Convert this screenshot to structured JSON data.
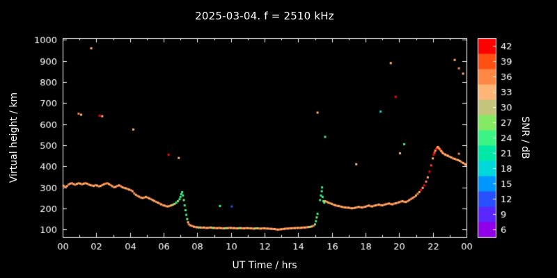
{
  "chart_data": {
    "type": "scatter",
    "title": "2025-03-04. f = 2510 kHz",
    "xlabel": "UT Time / hrs",
    "ylabel": "Virtual height / km",
    "xlim": [
      0,
      24
    ],
    "ylim": [
      65,
      1008
    ],
    "x_ticks": {
      "values": [
        0,
        2,
        4,
        6,
        8,
        10,
        12,
        14,
        16,
        18,
        20,
        22,
        24
      ],
      "labels": [
        "00",
        "02",
        "04",
        "06",
        "08",
        "10",
        "12",
        "14",
        "16",
        "18",
        "20",
        "22",
        "00"
      ]
    },
    "y_ticks": [
      100,
      200,
      300,
      400,
      500,
      600,
      700,
      800,
      900,
      1000
    ],
    "colorbar": {
      "label": "SNR / dB",
      "ticks": [
        6,
        9,
        12,
        15,
        18,
        21,
        24,
        27,
        30,
        33,
        36,
        39,
        42
      ],
      "colors": [
        "#9000e8",
        "#5a28ff",
        "#2850ff",
        "#0096ff",
        "#00d8dc",
        "#00e8a8",
        "#3cf484",
        "#84ea64",
        "#c4c47c",
        "#ffb478",
        "#ff8844",
        "#ff5014",
        "#ff0000"
      ]
    },
    "points": [
      [
        0.05,
        308,
        34
      ],
      [
        0.15,
        302,
        35
      ],
      [
        0.25,
        306,
        34
      ],
      [
        0.35,
        314,
        35
      ],
      [
        0.45,
        318,
        34
      ],
      [
        0.55,
        320,
        35
      ],
      [
        0.65,
        316,
        34
      ],
      [
        0.75,
        313,
        35
      ],
      [
        0.85,
        317,
        34
      ],
      [
        0.95,
        320,
        35
      ],
      [
        1.05,
        318,
        34
      ],
      [
        1.15,
        315,
        35
      ],
      [
        1.25,
        318,
        34
      ],
      [
        1.35,
        320,
        36
      ],
      [
        1.45,
        318,
        34
      ],
      [
        1.55,
        314,
        35
      ],
      [
        1.65,
        311,
        34
      ],
      [
        1.75,
        309,
        35
      ],
      [
        1.85,
        307,
        34
      ],
      [
        1.95,
        311,
        35
      ],
      [
        2.05,
        309,
        34
      ],
      [
        2.15,
        305,
        35
      ],
      [
        2.25,
        307,
        34
      ],
      [
        2.35,
        311,
        35
      ],
      [
        2.45,
        315,
        34
      ],
      [
        2.55,
        318,
        36
      ],
      [
        2.65,
        320,
        35
      ],
      [
        2.75,
        316,
        34
      ],
      [
        2.85,
        311,
        35
      ],
      [
        2.95,
        306,
        34
      ],
      [
        3.05,
        301,
        35
      ],
      [
        3.15,
        303,
        34
      ],
      [
        3.25,
        307,
        35
      ],
      [
        3.35,
        310,
        34
      ],
      [
        3.45,
        306,
        35
      ],
      [
        3.55,
        301,
        34
      ],
      [
        3.65,
        298,
        35
      ],
      [
        3.75,
        296,
        34
      ],
      [
        3.85,
        293,
        35
      ],
      [
        3.95,
        290,
        34
      ],
      [
        4.05,
        287,
        35
      ],
      [
        4.15,
        282,
        34
      ],
      [
        4.25,
        272,
        35
      ],
      [
        4.35,
        265,
        34
      ],
      [
        4.45,
        260,
        35
      ],
      [
        4.55,
        256,
        34
      ],
      [
        4.65,
        252,
        35
      ],
      [
        4.75,
        250,
        34
      ],
      [
        4.85,
        252,
        35
      ],
      [
        4.95,
        255,
        34
      ],
      [
        5.05,
        252,
        35
      ],
      [
        5.15,
        248,
        34
      ],
      [
        5.25,
        244,
        35
      ],
      [
        5.35,
        240,
        33
      ],
      [
        5.45,
        236,
        34
      ],
      [
        5.55,
        232,
        35
      ],
      [
        5.65,
        228,
        34
      ],
      [
        5.75,
        224,
        35
      ],
      [
        5.85,
        220,
        34
      ],
      [
        5.95,
        216,
        35
      ],
      [
        6.05,
        214,
        34
      ],
      [
        6.15,
        211,
        35
      ],
      [
        6.25,
        210,
        34
      ],
      [
        6.35,
        212,
        35
      ],
      [
        6.45,
        215,
        34
      ],
      [
        6.55,
        218,
        27
      ],
      [
        6.65,
        222,
        34
      ],
      [
        6.75,
        228,
        25
      ],
      [
        6.85,
        235,
        26
      ],
      [
        6.95,
        244,
        25
      ],
      [
        7.0,
        255,
        24
      ],
      [
        7.05,
        268,
        25
      ],
      [
        7.1,
        278,
        24
      ],
      [
        7.15,
        262,
        25
      ],
      [
        7.2,
        240,
        26
      ],
      [
        7.25,
        215,
        25
      ],
      [
        7.3,
        192,
        24
      ],
      [
        7.35,
        170,
        25
      ],
      [
        7.4,
        150,
        26
      ],
      [
        7.45,
        135,
        34
      ],
      [
        7.5,
        125,
        35
      ],
      [
        7.6,
        120,
        34
      ],
      [
        7.7,
        117,
        35
      ],
      [
        7.8,
        114,
        34
      ],
      [
        7.9,
        112,
        35
      ],
      [
        8.0,
        111,
        34
      ],
      [
        8.1,
        110,
        26
      ],
      [
        8.2,
        110,
        34
      ],
      [
        8.3,
        109,
        35
      ],
      [
        8.4,
        110,
        34
      ],
      [
        8.5,
        108,
        35
      ],
      [
        8.6,
        108,
        34
      ],
      [
        8.7,
        109,
        35
      ],
      [
        8.8,
        110,
        34
      ],
      [
        8.9,
        108,
        26
      ],
      [
        9.0,
        108,
        34
      ],
      [
        9.1,
        107,
        35
      ],
      [
        9.2,
        107,
        34
      ],
      [
        9.3,
        108,
        35
      ],
      [
        9.4,
        107,
        34
      ],
      [
        9.5,
        106,
        35
      ],
      [
        9.6,
        106,
        34
      ],
      [
        9.7,
        107,
        26
      ],
      [
        9.8,
        107,
        34
      ],
      [
        9.9,
        108,
        35
      ],
      [
        10.0,
        108,
        34
      ],
      [
        10.1,
        107,
        35
      ],
      [
        10.2,
        107,
        34
      ],
      [
        10.3,
        106,
        35
      ],
      [
        10.4,
        106,
        34
      ],
      [
        10.5,
        107,
        26
      ],
      [
        10.6,
        107,
        34
      ],
      [
        10.7,
        106,
        35
      ],
      [
        10.8,
        106,
        34
      ],
      [
        10.9,
        107,
        35
      ],
      [
        11.0,
        107,
        34
      ],
      [
        11.1,
        106,
        35
      ],
      [
        11.2,
        106,
        34
      ],
      [
        11.3,
        105,
        35
      ],
      [
        11.4,
        105,
        34
      ],
      [
        11.5,
        106,
        26
      ],
      [
        11.6,
        106,
        34
      ],
      [
        11.7,
        105,
        35
      ],
      [
        11.8,
        105,
        34
      ],
      [
        11.9,
        106,
        35
      ],
      [
        12.0,
        106,
        34
      ],
      [
        12.1,
        105,
        35
      ],
      [
        12.2,
        105,
        34
      ],
      [
        12.3,
        104,
        35
      ],
      [
        12.4,
        104,
        34
      ],
      [
        12.5,
        103,
        35
      ],
      [
        12.6,
        103,
        34
      ],
      [
        12.7,
        101,
        35
      ],
      [
        12.8,
        100,
        34
      ],
      [
        12.9,
        101,
        35
      ],
      [
        13.0,
        102,
        34
      ],
      [
        13.1,
        103,
        35
      ],
      [
        13.2,
        104,
        34
      ],
      [
        13.3,
        105,
        35
      ],
      [
        13.4,
        105,
        34
      ],
      [
        13.5,
        106,
        35
      ],
      [
        13.6,
        106,
        34
      ],
      [
        13.7,
        107,
        35
      ],
      [
        13.8,
        107,
        34
      ],
      [
        13.9,
        108,
        35
      ],
      [
        14.0,
        108,
        34
      ],
      [
        14.1,
        108,
        35
      ],
      [
        14.2,
        109,
        34
      ],
      [
        14.3,
        110,
        35
      ],
      [
        14.4,
        110,
        34
      ],
      [
        14.5,
        111,
        35
      ],
      [
        14.6,
        112,
        34
      ],
      [
        14.7,
        113,
        26
      ],
      [
        14.8,
        115,
        34
      ],
      [
        14.9,
        118,
        35
      ],
      [
        15.0,
        125,
        26
      ],
      [
        15.05,
        140,
        25
      ],
      [
        15.1,
        158,
        26
      ],
      [
        15.15,
        175,
        25
      ],
      [
        15.3,
        240,
        25
      ],
      [
        15.35,
        262,
        24
      ],
      [
        15.4,
        282,
        25
      ],
      [
        15.42,
        300,
        24
      ],
      [
        15.45,
        255,
        25
      ],
      [
        15.5,
        235,
        26
      ],
      [
        15.55,
        228,
        25
      ],
      [
        15.6,
        235,
        34
      ],
      [
        15.7,
        232,
        35
      ],
      [
        15.8,
        228,
        34
      ],
      [
        15.9,
        225,
        35
      ],
      [
        16.0,
        222,
        34
      ],
      [
        16.1,
        218,
        35
      ],
      [
        16.2,
        216,
        34
      ],
      [
        16.3,
        213,
        35
      ],
      [
        16.4,
        212,
        34
      ],
      [
        16.5,
        210,
        35
      ],
      [
        16.6,
        208,
        34
      ],
      [
        16.7,
        206,
        35
      ],
      [
        16.8,
        205,
        34
      ],
      [
        16.9,
        204,
        35
      ],
      [
        17.0,
        204,
        34
      ],
      [
        17.1,
        202,
        35
      ],
      [
        17.2,
        201,
        34
      ],
      [
        17.3,
        202,
        35
      ],
      [
        17.4,
        204,
        34
      ],
      [
        17.5,
        206,
        35
      ],
      [
        17.6,
        208,
        34
      ],
      [
        17.7,
        206,
        35
      ],
      [
        17.8,
        205,
        34
      ],
      [
        17.9,
        207,
        35
      ],
      [
        18.0,
        209,
        34
      ],
      [
        18.1,
        212,
        35
      ],
      [
        18.2,
        214,
        34
      ],
      [
        18.3,
        211,
        35
      ],
      [
        18.4,
        210,
        34
      ],
      [
        18.5,
        213,
        35
      ],
      [
        18.6,
        215,
        34
      ],
      [
        18.7,
        217,
        35
      ],
      [
        18.8,
        219,
        34
      ],
      [
        18.9,
        216,
        35
      ],
      [
        19.0,
        215,
        34
      ],
      [
        19.1,
        218,
        35
      ],
      [
        19.2,
        220,
        34
      ],
      [
        19.3,
        222,
        35
      ],
      [
        19.4,
        224,
        34
      ],
      [
        19.5,
        221,
        35
      ],
      [
        19.6,
        220,
        34
      ],
      [
        19.7,
        223,
        35
      ],
      [
        19.8,
        225,
        34
      ],
      [
        19.9,
        227,
        35
      ],
      [
        20.0,
        230,
        34
      ],
      [
        20.1,
        233,
        35
      ],
      [
        20.2,
        235,
        34
      ],
      [
        20.3,
        232,
        35
      ],
      [
        20.4,
        231,
        34
      ],
      [
        20.5,
        235,
        35
      ],
      [
        20.6,
        240,
        34
      ],
      [
        20.7,
        245,
        35
      ],
      [
        20.8,
        250,
        34
      ],
      [
        20.9,
        255,
        35
      ],
      [
        21.0,
        262,
        34
      ],
      [
        21.1,
        270,
        35
      ],
      [
        21.2,
        278,
        34
      ],
      [
        21.3,
        288,
        41
      ],
      [
        21.4,
        298,
        34
      ],
      [
        21.5,
        310,
        41
      ],
      [
        21.6,
        328,
        35
      ],
      [
        21.7,
        348,
        34
      ],
      [
        21.8,
        375,
        41
      ],
      [
        21.9,
        405,
        39
      ],
      [
        22.0,
        438,
        34
      ],
      [
        22.05,
        455,
        41
      ],
      [
        22.1,
        465,
        39
      ],
      [
        22.15,
        475,
        34
      ],
      [
        22.2,
        482,
        41
      ],
      [
        22.25,
        488,
        39
      ],
      [
        22.3,
        492,
        34
      ],
      [
        22.35,
        488,
        35
      ],
      [
        22.4,
        482,
        34
      ],
      [
        22.45,
        478,
        39
      ],
      [
        22.5,
        472,
        34
      ],
      [
        22.55,
        468,
        35
      ],
      [
        22.6,
        462,
        34
      ],
      [
        22.7,
        458,
        35
      ],
      [
        22.75,
        455,
        34
      ],
      [
        22.85,
        452,
        35
      ],
      [
        22.9,
        450,
        34
      ],
      [
        23.0,
        446,
        35
      ],
      [
        23.1,
        442,
        34
      ],
      [
        23.2,
        438,
        35
      ],
      [
        23.3,
        436,
        34
      ],
      [
        23.4,
        432,
        35
      ],
      [
        23.5,
        430,
        34
      ],
      [
        23.55,
        460,
        35
      ],
      [
        23.6,
        426,
        34
      ],
      [
        23.7,
        421,
        35
      ],
      [
        23.8,
        416,
        34
      ],
      [
        23.9,
        411,
        35
      ],
      [
        23.95,
        408,
        34
      ],
      [
        0.95,
        650,
        35
      ],
      [
        1.1,
        645,
        34
      ],
      [
        1.7,
        960,
        34
      ],
      [
        2.2,
        640,
        41
      ],
      [
        2.35,
        638,
        34
      ],
      [
        4.2,
        575,
        34
      ],
      [
        6.3,
        455,
        41
      ],
      [
        6.9,
        440,
        34
      ],
      [
        9.35,
        212,
        25
      ],
      [
        10.05,
        210,
        11
      ],
      [
        15.15,
        655,
        34
      ],
      [
        15.6,
        540,
        25
      ],
      [
        17.45,
        410,
        34
      ],
      [
        18.9,
        660,
        18
      ],
      [
        19.5,
        890,
        34
      ],
      [
        19.8,
        730,
        41
      ],
      [
        20.05,
        462,
        34
      ],
      [
        20.3,
        505,
        25
      ],
      [
        23.3,
        905,
        34
      ],
      [
        23.55,
        865,
        35
      ],
      [
        23.8,
        840,
        34
      ]
    ]
  }
}
